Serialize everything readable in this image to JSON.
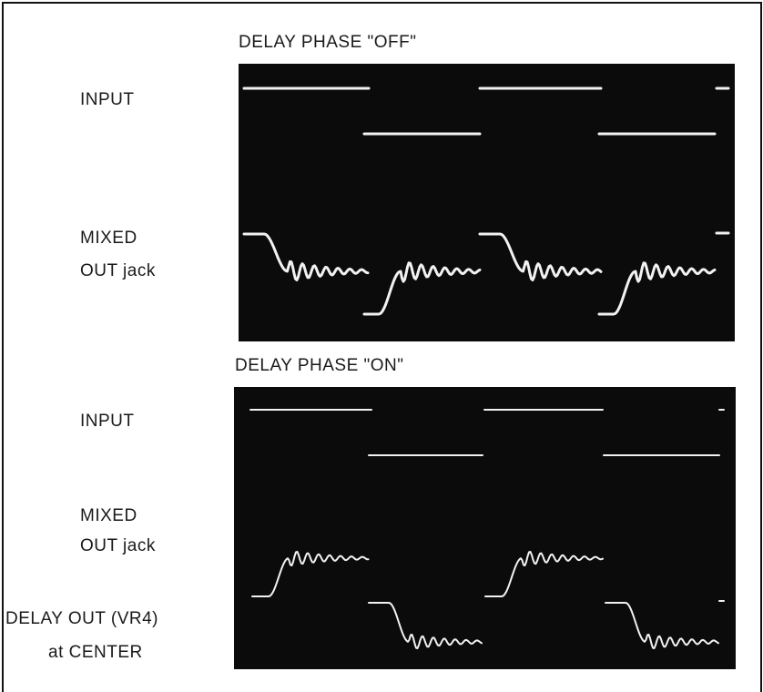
{
  "panels": [
    {
      "title": "DELAY PHASE \"OFF\"",
      "labels": [
        "INPUT",
        "MIXED",
        "OUT jack"
      ]
    },
    {
      "title": "DELAY PHASE \"ON\"",
      "labels": [
        "INPUT",
        "MIXED",
        "OUT jack",
        "DELAY OUT (VR4)",
        "at CENTER"
      ]
    }
  ]
}
